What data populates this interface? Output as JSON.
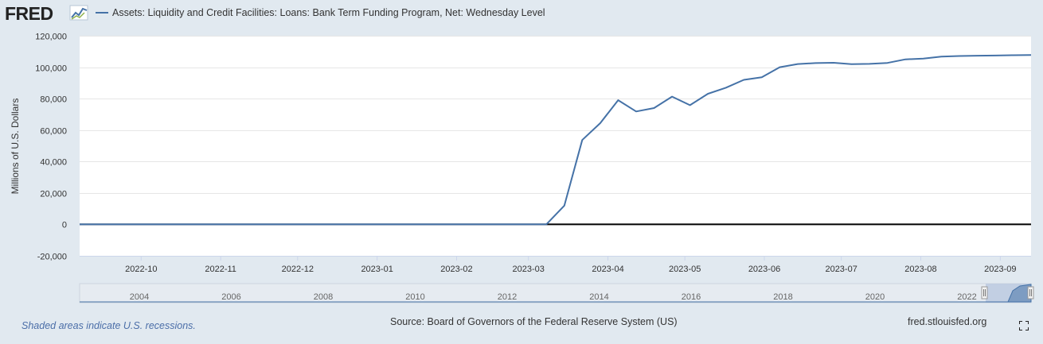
{
  "header": {
    "logo_text": "FRED",
    "legend_label": "Assets: Liquidity and Credit Facilities: Loans: Bank Term Funding Program, Net: Wednesday Level"
  },
  "footer": {
    "recession_note": "Shaded areas indicate U.S. recessions.",
    "source": "Source: Board of Governors of the Federal Reserve System (US)",
    "site": "fred.stlouisfed.org"
  },
  "navigator": {
    "year_labels": [
      "2004",
      "2006",
      "2008",
      "2010",
      "2012",
      "2014",
      "2016",
      "2018",
      "2020",
      "2022"
    ]
  },
  "colors": {
    "series": "#4572a7",
    "background": "#e1e9f0",
    "plot": "#ffffff",
    "zero_line": "#000000"
  },
  "chart_data": {
    "type": "line",
    "title": "",
    "ylabel": "Millions of U.S. Dollars",
    "xlabel": "",
    "ylim": [
      -20000,
      120000
    ],
    "yticks": [
      "-20,000",
      "0",
      "20,000",
      "40,000",
      "60,000",
      "80,000",
      "100,000",
      "120,000"
    ],
    "ytick_values": [
      -20000,
      0,
      20000,
      40000,
      60000,
      80000,
      100000,
      120000
    ],
    "xlim": [
      "2022-09-07",
      "2023-09-13"
    ],
    "xticks": [
      "2022-10",
      "2022-11",
      "2022-12",
      "2023-01",
      "2023-02",
      "2023-03",
      "2023-04",
      "2023-05",
      "2023-06",
      "2023-07",
      "2023-08",
      "2023-09"
    ],
    "xtick_dates": [
      "2022-10-01",
      "2022-11-01",
      "2022-12-01",
      "2023-01-01",
      "2023-02-01",
      "2023-03-01",
      "2023-04-01",
      "2023-05-01",
      "2023-06-01",
      "2023-07-01",
      "2023-08-01",
      "2023-09-01"
    ],
    "grid": true,
    "series": [
      {
        "name": "Assets: Liquidity and Credit Facilities: Loans: Bank Term Funding Program, Net: Wednesday Level",
        "x": [
          "2022-09-07",
          "2023-03-08",
          "2023-03-15",
          "2023-03-22",
          "2023-03-29",
          "2023-04-05",
          "2023-04-12",
          "2023-04-19",
          "2023-04-26",
          "2023-05-03",
          "2023-05-10",
          "2023-05-17",
          "2023-05-24",
          "2023-05-31",
          "2023-06-07",
          "2023-06-14",
          "2023-06-21",
          "2023-06-28",
          "2023-07-05",
          "2023-07-12",
          "2023-07-19",
          "2023-07-26",
          "2023-08-02",
          "2023-08-09",
          "2023-08-16",
          "2023-08-23",
          "2023-08-30",
          "2023-09-06",
          "2023-09-13"
        ],
        "y": [
          0,
          0,
          11943,
          53669,
          64403,
          79021,
          71837,
          73982,
          81282,
          75835,
          83090,
          86944,
          91954,
          93610,
          100000,
          102000,
          102600,
          102800,
          101900,
          102100,
          102700,
          105000,
          105500,
          106700,
          107100,
          107300,
          107400,
          107600,
          107700
        ]
      }
    ]
  }
}
